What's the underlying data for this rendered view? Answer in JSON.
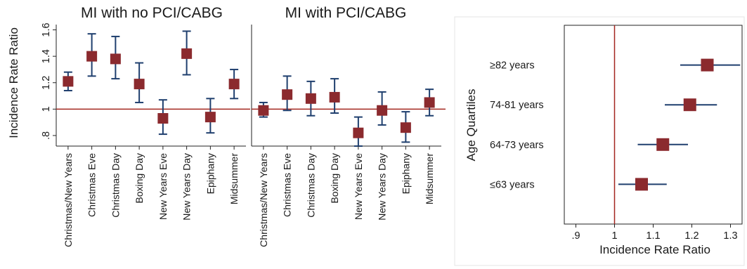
{
  "chart_data": [
    {
      "type": "scatter",
      "title": "MI with no PCI/CABG",
      "ylabel": "Incidence Rate Ratio",
      "xlabel": "",
      "reference_line": 1,
      "ylim": [
        0.72,
        1.64
      ],
      "yticks": [
        {
          "value": 0.8,
          "label": ".8"
        },
        {
          "value": 1.0,
          "label": "1"
        },
        {
          "value": 1.2,
          "label": "1.2"
        },
        {
          "value": 1.4,
          "label": "1.4"
        },
        {
          "value": 1.6,
          "label": "1.6"
        }
      ],
      "categories": [
        "Christmas/New Years",
        "Christmas Eve",
        "Christmas Day",
        "Boxing Day",
        "New Years Eve",
        "New Years Day",
        "Epiphany",
        "Midsummer"
      ],
      "values": [
        1.21,
        1.4,
        1.38,
        1.19,
        0.93,
        1.42,
        0.94,
        1.19
      ],
      "ci_low": [
        1.14,
        1.25,
        1.23,
        1.05,
        0.81,
        1.26,
        0.82,
        1.08
      ],
      "ci_high": [
        1.28,
        1.57,
        1.55,
        1.35,
        1.07,
        1.59,
        1.08,
        1.3
      ]
    },
    {
      "type": "scatter",
      "title": "MI with PCI/CABG",
      "ylabel": "",
      "xlabel": "",
      "reference_line": 1,
      "ylim": [
        0.72,
        1.64
      ],
      "categories": [
        "Christmas/New Years",
        "Christmas Eve",
        "Christmas Day",
        "Boxing Day",
        "New Years Eve",
        "New Years Day",
        "Epiphany",
        "Midsummer"
      ],
      "values": [
        0.99,
        1.11,
        1.08,
        1.09,
        0.82,
        0.99,
        0.86,
        1.05
      ],
      "ci_low": [
        0.94,
        0.99,
        0.95,
        0.97,
        0.72,
        0.88,
        0.75,
        0.95
      ],
      "ci_high": [
        1.05,
        1.25,
        1.21,
        1.23,
        0.94,
        1.13,
        0.98,
        1.15
      ]
    },
    {
      "type": "scatter",
      "title": "",
      "ylabel": "Age Quartiles",
      "xlabel": "Incidence Rate Ratio",
      "reference_line": 1,
      "xlim": [
        0.87,
        1.33
      ],
      "xticks": [
        {
          "value": 0.9,
          "label": ".9"
        },
        {
          "value": 1.0,
          "label": "1"
        },
        {
          "value": 1.1,
          "label": "1.1"
        },
        {
          "value": 1.2,
          "label": "1.2"
        },
        {
          "value": 1.3,
          "label": "1.3"
        }
      ],
      "categories": [
        "≥82 years",
        "74-81 years",
        "64-73 years",
        "≤63 years"
      ],
      "values": [
        1.24,
        1.195,
        1.125,
        1.07
      ],
      "ci_low": [
        1.17,
        1.13,
        1.06,
        1.01
      ],
      "ci_high": [
        1.325,
        1.265,
        1.19,
        1.135
      ]
    }
  ]
}
